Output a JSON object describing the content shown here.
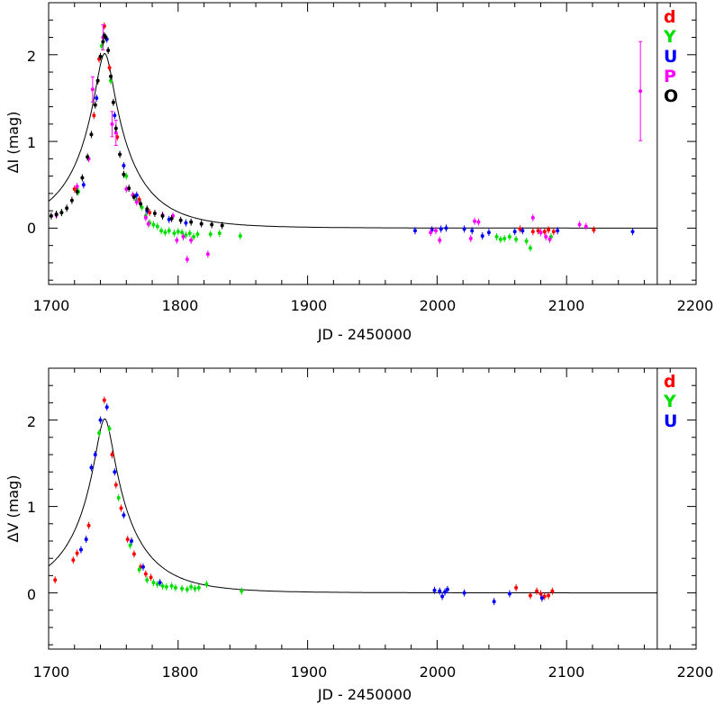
{
  "colors": {
    "d": "#ff0000",
    "Y": "#00e000",
    "U": "#0000ff",
    "P": "#ff00ff",
    "O": "#000000",
    "frame": "#000000",
    "model": "#000000"
  },
  "chart_data": [
    {
      "type": "scatter",
      "xlabel": "JD - 2450000",
      "ylabel": "ΔI (mag)",
      "xlim": [
        1700,
        2200
      ],
      "ylim": [
        -0.65,
        2.6
      ],
      "xticks": [
        "1700",
        "1800",
        "1900",
        "2000",
        "2100",
        "2200"
      ],
      "yticks": [
        "0",
        "1",
        "2"
      ],
      "legend_position": "top-right",
      "vertical_line_x": 2170,
      "series": [
        {
          "name": "d",
          "color": "#ff0000",
          "points": [
            [
              1743,
              2.33
            ],
            [
              1739,
              1.95
            ],
            [
              1747,
              1.85
            ],
            [
              1735,
              1.3
            ],
            [
              1753,
              1.05
            ],
            [
              1720,
              0.45
            ],
            [
              1770,
              0.33
            ],
            [
              1778,
              0.18
            ],
            [
              2064,
              -0.01
            ],
            [
              2074,
              -0.04
            ],
            [
              2078,
              -0.03
            ],
            [
              2080,
              -0.05
            ],
            [
              2083,
              -0.04
            ],
            [
              2086,
              -0.02
            ],
            [
              2090,
              -0.04
            ],
            [
              2121,
              -0.02
            ]
          ]
        },
        {
          "name": "Y",
          "color": "#00e000",
          "points": [
            [
              1710,
              0.18
            ],
            [
              1723,
              0.42
            ],
            [
              1741,
              2.1
            ],
            [
              1748,
              1.7
            ],
            [
              1760,
              0.6
            ],
            [
              1768,
              0.32
            ],
            [
              1772,
              0.24
            ],
            [
              1775,
              0.14
            ],
            [
              1778,
              0.06
            ],
            [
              1781,
              0.04
            ],
            [
              1784,
              0.02
            ],
            [
              1787,
              -0.03
            ],
            [
              1790,
              -0.05
            ],
            [
              1793,
              -0.03
            ],
            [
              1797,
              -0.06
            ],
            [
              1800,
              -0.04
            ],
            [
              1803,
              -0.05
            ],
            [
              1806,
              -0.08
            ],
            [
              1809,
              -0.06
            ],
            [
              1812,
              -0.1
            ],
            [
              1815,
              -0.07
            ],
            [
              1825,
              -0.07
            ],
            [
              1832,
              -0.06
            ],
            [
              1848,
              -0.09
            ],
            [
              2046,
              -0.1
            ],
            [
              2049,
              -0.13
            ],
            [
              2052,
              -0.12
            ],
            [
              2056,
              -0.1
            ],
            [
              2061,
              -0.13
            ],
            [
              2069,
              -0.15
            ],
            [
              2072,
              -0.23
            ],
            [
              2088,
              -0.1
            ]
          ]
        },
        {
          "name": "U",
          "color": "#0000ff",
          "points": [
            [
              1727,
              0.5
            ],
            [
              1737,
              1.5
            ],
            [
              1745,
              2.18
            ],
            [
              1751,
              1.3
            ],
            [
              1758,
              0.72
            ],
            [
              1768,
              0.38
            ],
            [
              1776,
              0.2
            ],
            [
              1793,
              0.1
            ],
            [
              1806,
              0.06
            ],
            [
              1983,
              -0.03
            ],
            [
              1996,
              -0.02
            ],
            [
              2003,
              -0.01
            ],
            [
              2007,
              0.0
            ],
            [
              2021,
              -0.01
            ],
            [
              2027,
              -0.03
            ],
            [
              2035,
              -0.09
            ],
            [
              2040,
              -0.05
            ],
            [
              2060,
              -0.04
            ],
            [
              2066,
              -0.03
            ],
            [
              2093,
              -0.03
            ],
            [
              2151,
              -0.04
            ]
          ]
        },
        {
          "name": "P",
          "color": "#ff00ff",
          "points": [
            [
              1706,
              0.15
            ],
            [
              1722,
              0.48
            ],
            [
              1731,
              0.8
            ],
            [
              1734,
              1.6
            ],
            [
              1742,
              2.2
            ],
            [
              1749,
              1.2
            ],
            [
              1752,
              1.1
            ],
            [
              1760,
              0.45
            ],
            [
              1765,
              0.38
            ],
            [
              1768,
              0.3
            ],
            [
              1775,
              0.12
            ],
            [
              1777,
              0.05
            ],
            [
              1788,
              0.15
            ],
            [
              1796,
              0.14
            ],
            [
              1799,
              -0.14
            ],
            [
              1804,
              -0.1
            ],
            [
              1807,
              -0.36
            ],
            [
              1810,
              -0.14
            ],
            [
              1823,
              -0.3
            ],
            [
              1995,
              -0.05
            ],
            [
              1999,
              -0.03
            ],
            [
              2002,
              -0.14
            ],
            [
              2026,
              -0.12
            ],
            [
              2029,
              0.08
            ],
            [
              2032,
              0.07
            ],
            [
              2074,
              0.12
            ],
            [
              2080,
              -0.05
            ],
            [
              2084,
              -0.1
            ],
            [
              2087,
              -0.13
            ],
            [
              2110,
              0.04
            ],
            [
              2115,
              0.02
            ],
            [
              2157,
              1.58
            ]
          ]
        },
        {
          "name": "O",
          "color": "#000000",
          "points": [
            [
              1702,
              0.14
            ],
            [
              1706,
              0.16
            ],
            [
              1710,
              0.18
            ],
            [
              1714,
              0.23
            ],
            [
              1718,
              0.32
            ],
            [
              1722,
              0.42
            ],
            [
              1726,
              0.58
            ],
            [
              1730,
              0.82
            ],
            [
              1733,
              1.08
            ],
            [
              1736,
              1.42
            ],
            [
              1738,
              1.7
            ],
            [
              1740,
              1.98
            ],
            [
              1742,
              2.15
            ],
            [
              1743,
              2.22
            ],
            [
              1744,
              2.2
            ],
            [
              1746,
              2.05
            ],
            [
              1748,
              1.75
            ],
            [
              1750,
              1.45
            ],
            [
              1752,
              1.15
            ],
            [
              1755,
              0.85
            ],
            [
              1758,
              0.62
            ],
            [
              1762,
              0.46
            ],
            [
              1766,
              0.36
            ],
            [
              1771,
              0.28
            ],
            [
              1776,
              0.22
            ],
            [
              1782,
              0.17
            ],
            [
              1788,
              0.14
            ],
            [
              1795,
              0.11
            ],
            [
              1802,
              0.09
            ],
            [
              1810,
              0.07
            ],
            [
              1818,
              0.05
            ],
            [
              1826,
              0.04
            ],
            [
              1834,
              0.03
            ]
          ]
        }
      ]
    },
    {
      "type": "scatter",
      "xlabel": "JD - 2450000",
      "ylabel": "ΔV (mag)",
      "xlim": [
        1700,
        2200
      ],
      "ylim": [
        -0.65,
        2.6
      ],
      "xticks": [
        "1700",
        "1800",
        "1900",
        "2000",
        "2100",
        "2200"
      ],
      "yticks": [
        "0",
        "1",
        "2"
      ],
      "legend_position": "top-right",
      "vertical_line_x": 2170,
      "series": [
        {
          "name": "d",
          "color": "#ff0000",
          "points": [
            [
              1705,
              0.15
            ],
            [
              1719,
              0.38
            ],
            [
              1722,
              0.46
            ],
            [
              1731,
              0.78
            ],
            [
              1743,
              2.23
            ],
            [
              1749,
              1.6
            ],
            [
              1752,
              1.25
            ],
            [
              1756,
              0.98
            ],
            [
              1761,
              0.62
            ],
            [
              1766,
              0.45
            ],
            [
              1771,
              0.3
            ],
            [
              1775,
              0.22
            ],
            [
              1779,
              0.18
            ],
            [
              2061,
              0.06
            ],
            [
              2072,
              -0.03
            ],
            [
              2077,
              0.02
            ],
            [
              2080,
              -0.01
            ],
            [
              2083,
              -0.04
            ],
            [
              2086,
              -0.03
            ],
            [
              2089,
              0.02
            ]
          ]
        },
        {
          "name": "Y",
          "color": "#00e000",
          "points": [
            [
              1739,
              1.85
            ],
            [
              1747,
              1.9
            ],
            [
              1754,
              1.1
            ],
            [
              1763,
              0.55
            ],
            [
              1770,
              0.27
            ],
            [
              1776,
              0.15
            ],
            [
              1781,
              0.12
            ],
            [
              1784,
              0.1
            ],
            [
              1788,
              0.08
            ],
            [
              1791,
              0.07
            ],
            [
              1795,
              0.08
            ],
            [
              1798,
              0.06
            ],
            [
              1803,
              0.05
            ],
            [
              1807,
              0.04
            ],
            [
              1810,
              0.07
            ],
            [
              1813,
              0.05
            ],
            [
              1816,
              0.06
            ],
            [
              1822,
              0.1
            ],
            [
              1849,
              0.02
            ]
          ]
        },
        {
          "name": "U",
          "color": "#0000ff",
          "points": [
            [
              1725,
              0.5
            ],
            [
              1729,
              0.62
            ],
            [
              1733,
              1.45
            ],
            [
              1736,
              1.6
            ],
            [
              1740,
              2.0
            ],
            [
              1745,
              2.15
            ],
            [
              1751,
              1.4
            ],
            [
              1758,
              0.9
            ],
            [
              1764,
              0.6
            ],
            [
              1773,
              0.3
            ],
            [
              1786,
              0.12
            ],
            [
              1998,
              0.03
            ],
            [
              2002,
              0.02
            ],
            [
              2004,
              -0.04
            ],
            [
              2006,
              0.01
            ],
            [
              2008,
              0.04
            ],
            [
              2021,
              0.0
            ],
            [
              2044,
              -0.1
            ],
            [
              2056,
              -0.01
            ],
            [
              2081,
              -0.06
            ]
          ]
        }
      ]
    }
  ]
}
